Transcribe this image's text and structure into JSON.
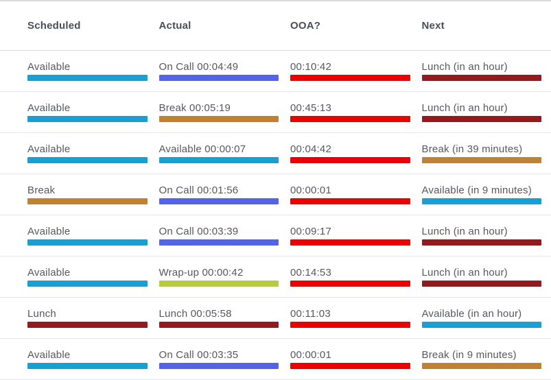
{
  "table": {
    "columns": [
      {
        "key": "scheduled",
        "label": "Scheduled"
      },
      {
        "key": "actual",
        "label": "Actual"
      },
      {
        "key": "ooa",
        "label": "OOA?"
      },
      {
        "key": "next",
        "label": "Next"
      }
    ],
    "status_colors": {
      "available": "#189fd4",
      "oncall": "#5464e8",
      "break": "#c08232",
      "lunch": "#951a1e",
      "wrapup": "#b6cc38",
      "ooa": "#ec0000"
    },
    "rows": [
      {
        "scheduled": {
          "text": "Available",
          "status": "available"
        },
        "actual": {
          "text": "On Call 00:04:49",
          "status": "oncall"
        },
        "ooa": {
          "text": "00:10:42",
          "status": "ooa"
        },
        "next": {
          "text": "Lunch (in an hour)",
          "status": "lunch"
        }
      },
      {
        "scheduled": {
          "text": "Available",
          "status": "available"
        },
        "actual": {
          "text": "Break 00:05:19",
          "status": "break"
        },
        "ooa": {
          "text": "00:45:13",
          "status": "ooa"
        },
        "next": {
          "text": "Lunch (in an hour)",
          "status": "lunch"
        }
      },
      {
        "scheduled": {
          "text": "Available",
          "status": "available"
        },
        "actual": {
          "text": "Available 00:00:07",
          "status": "available"
        },
        "ooa": {
          "text": "00:04:42",
          "status": "ooa"
        },
        "next": {
          "text": "Break (in 39 minutes)",
          "status": "break"
        }
      },
      {
        "scheduled": {
          "text": "Break",
          "status": "break"
        },
        "actual": {
          "text": "On Call 00:01:56",
          "status": "oncall"
        },
        "ooa": {
          "text": "00:00:01",
          "status": "ooa"
        },
        "next": {
          "text": "Available (in 9 minutes)",
          "status": "available"
        }
      },
      {
        "scheduled": {
          "text": "Available",
          "status": "available"
        },
        "actual": {
          "text": "On Call 00:03:39",
          "status": "oncall"
        },
        "ooa": {
          "text": "00:09:17",
          "status": "ooa"
        },
        "next": {
          "text": "Lunch (in an hour)",
          "status": "lunch"
        }
      },
      {
        "scheduled": {
          "text": "Available",
          "status": "available"
        },
        "actual": {
          "text": "Wrap-up 00:00:42",
          "status": "wrapup"
        },
        "ooa": {
          "text": "00:14:53",
          "status": "ooa"
        },
        "next": {
          "text": "Lunch (in an hour)",
          "status": "lunch"
        }
      },
      {
        "scheduled": {
          "text": "Lunch",
          "status": "lunch"
        },
        "actual": {
          "text": "Lunch 00:05:58",
          "status": "lunch"
        },
        "ooa": {
          "text": "00:11:03",
          "status": "ooa"
        },
        "next": {
          "text": "Available (in an hour)",
          "status": "available"
        }
      },
      {
        "scheduled": {
          "text": "Available",
          "status": "available"
        },
        "actual": {
          "text": "On Call 00:03:35",
          "status": "oncall"
        },
        "ooa": {
          "text": "00:00:01",
          "status": "ooa"
        },
        "next": {
          "text": "Break (in 9 minutes)",
          "status": "break"
        }
      }
    ]
  }
}
